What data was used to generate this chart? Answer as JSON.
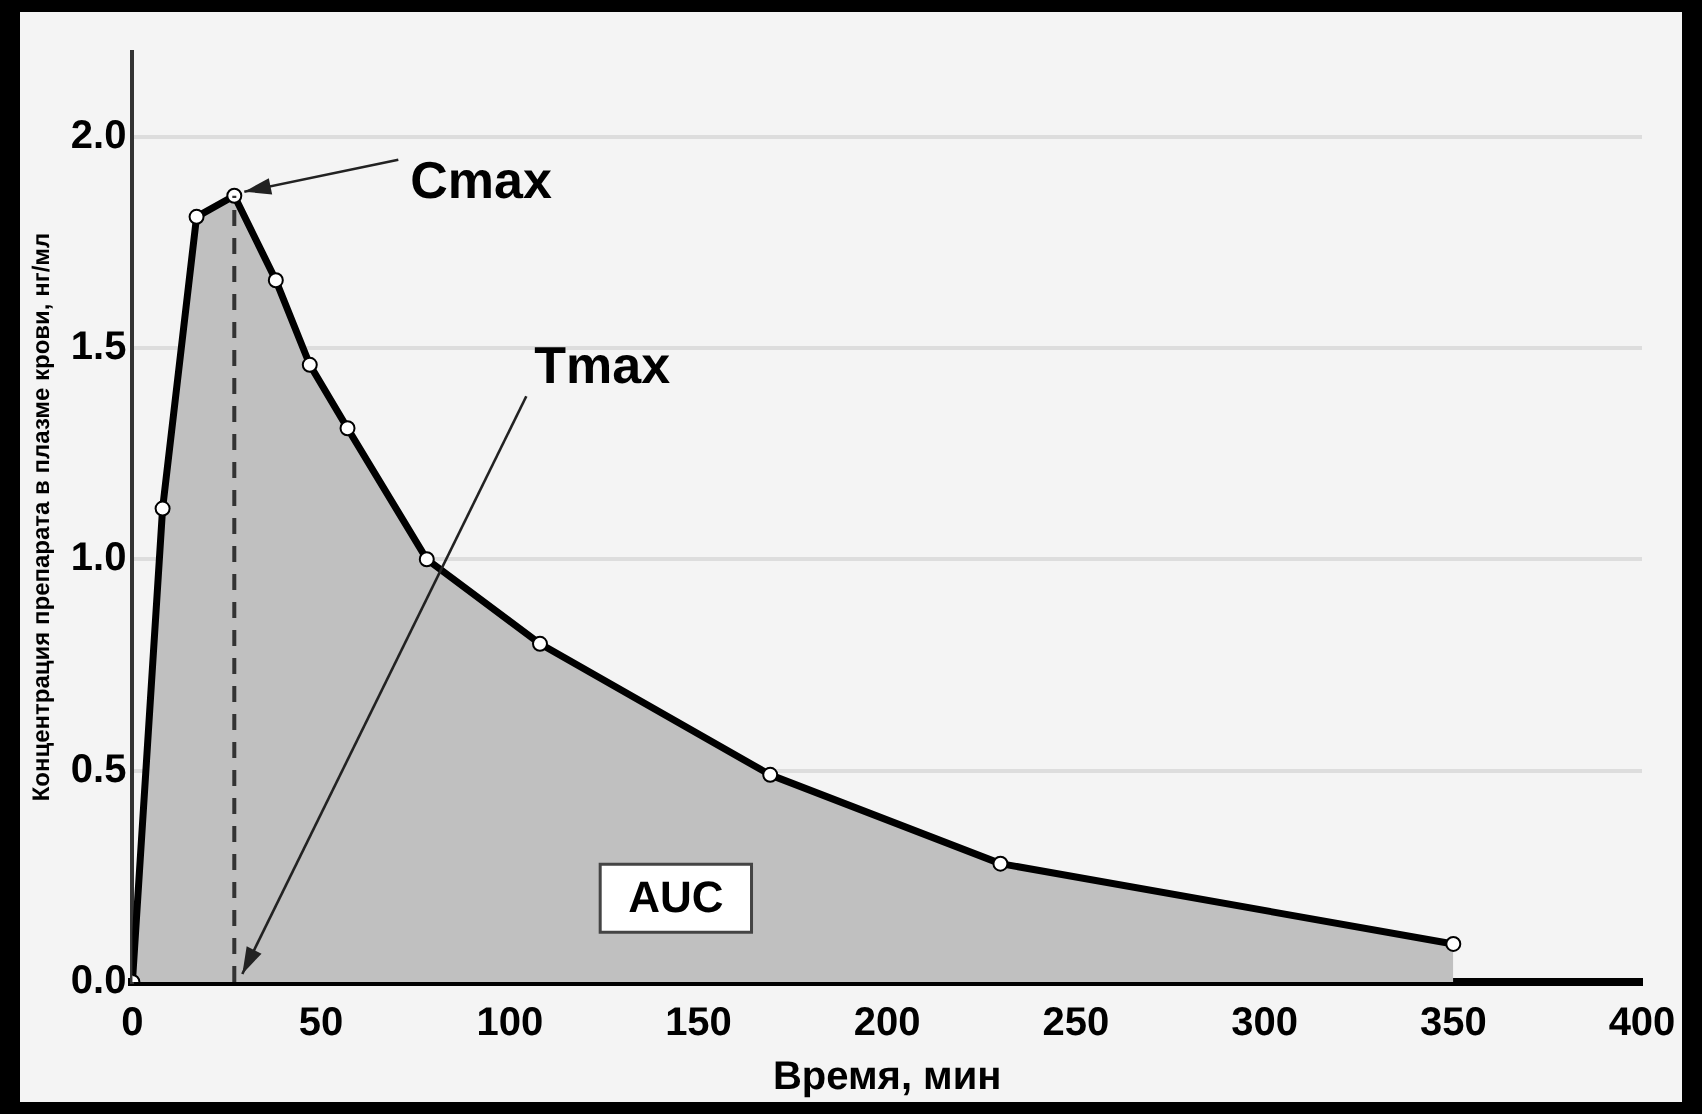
{
  "chart_data": {
    "type": "area",
    "xlabel": "Время, мин",
    "ylabel": "Концентрация препарата в плазме крови, нг/мл",
    "x": [
      0,
      8,
      17,
      27,
      38,
      47,
      57,
      78,
      108,
      169,
      230,
      350
    ],
    "series": [
      {
        "color": "#000000",
        "values": [
          0,
          1.12,
          1.81,
          1.86,
          1.66,
          1.46,
          1.31,
          1.0,
          0.8,
          0.49,
          0.28,
          0.09
        ]
      }
    ],
    "xlim": [
      0,
      400
    ],
    "xticks": [
      0,
      50,
      100,
      150,
      200,
      250,
      300,
      350,
      400
    ],
    "ylim": [
      0,
      2.2
    ],
    "yticks": [
      {
        "value": 0,
        "label": "0.0"
      },
      {
        "value": 0.5,
        "label": "0.5"
      },
      {
        "value": 1,
        "label": "1.0"
      },
      {
        "value": 1.5,
        "label": "1.5"
      },
      {
        "value": 2,
        "label": "2.0"
      }
    ],
    "grid": "y",
    "marker": "circle",
    "legend": false,
    "ref_lines": [
      {
        "axis": "x",
        "value": 27,
        "line_style": "dashed",
        "color": "#333333"
      }
    ],
    "annotations": [
      {
        "text": "Cmax",
        "x": 27,
        "y": 1.86
      },
      "Tmax",
      "AUC"
    ]
  }
}
